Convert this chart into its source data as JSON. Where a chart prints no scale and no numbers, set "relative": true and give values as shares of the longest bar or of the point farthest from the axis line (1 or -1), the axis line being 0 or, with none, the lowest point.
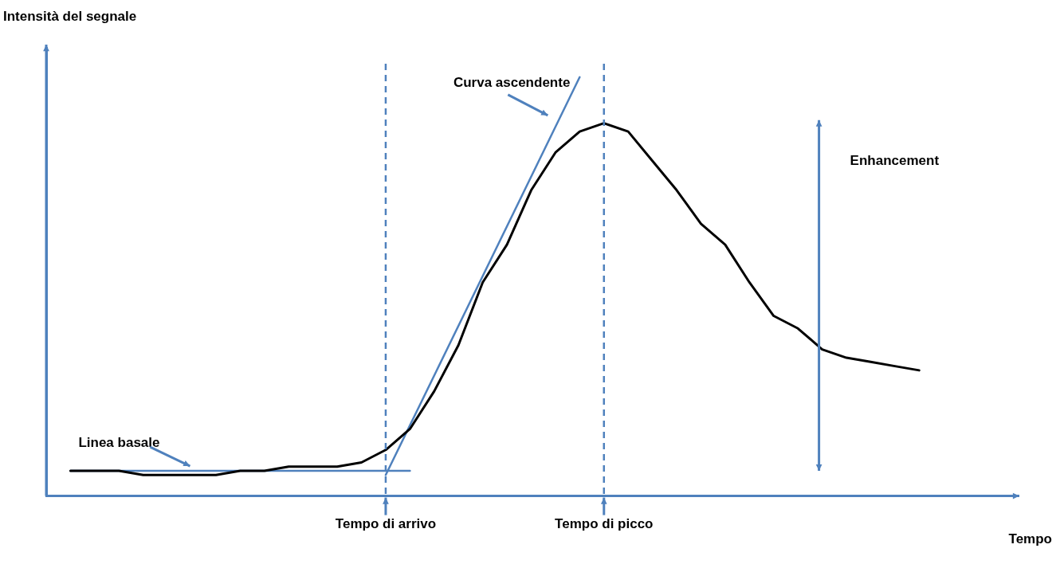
{
  "chart_data": {
    "type": "line",
    "relative": true,
    "xlabel": "Tempo",
    "ylabel": "Intensità del segnale",
    "categories": [
      null,
      null,
      null,
      null,
      null,
      null,
      null,
      null,
      null,
      null,
      null,
      null,
      null,
      null,
      "Tempo di arrivo",
      null,
      null,
      null,
      null,
      null,
      null,
      null,
      null,
      "Tempo di picco",
      null,
      null,
      null,
      null,
      null,
      null,
      null,
      null,
      null,
      null,
      null,
      null,
      null,
      null,
      null,
      null,
      null
    ],
    "series": [
      {
        "color": "#000000",
        "values": [
          null,
          0.06,
          0.06,
          0.06,
          0.05,
          0.05,
          0.05,
          0.05,
          0.06,
          0.06,
          0.07,
          0.07,
          0.07,
          0.08,
          0.11,
          0.16,
          0.25,
          0.36,
          0.51,
          0.6,
          0.73,
          0.82,
          0.87,
          0.89,
          0.87,
          0.8,
          0.73,
          0.65,
          0.6,
          0.51,
          0.43,
          0.4,
          0.35,
          0.33,
          0.32,
          0.31,
          0.3,
          null,
          null,
          null,
          null
        ]
      },
      {
        "name": "Linea basale",
        "color": "#4f81bd",
        "values": [
          null,
          0.06,
          null,
          null,
          null,
          null,
          null,
          null,
          null,
          null,
          null,
          null,
          null,
          null,
          null,
          0.06,
          null,
          null,
          null,
          null,
          null,
          null,
          null,
          null,
          null,
          null,
          null,
          null,
          null,
          null,
          null,
          null,
          null,
          null,
          null,
          null,
          null,
          null,
          null,
          null,
          null
        ]
      },
      {
        "name": "Curva ascendente",
        "color": "#4f81bd",
        "values": [
          null,
          null,
          null,
          null,
          null,
          null,
          null,
          null,
          null,
          null,
          null,
          null,
          null,
          null,
          0.05,
          null,
          null,
          null,
          null,
          null,
          null,
          null,
          1,
          null,
          null,
          null,
          null,
          null,
          null,
          null,
          null,
          null,
          null,
          null,
          null,
          null,
          null,
          null,
          null,
          null,
          null
        ]
      }
    ],
    "ref_lines": [
      {
        "axis": "x",
        "value": "Tempo di arrivo",
        "color": "#4f81bd",
        "line_style": "dashed"
      },
      {
        "axis": "x",
        "value": "Tempo di picco",
        "color": "#4f81bd",
        "line_style": "dashed"
      }
    ],
    "annotations": [
      "Enhancement"
    ],
    "grid": false,
    "legend": false,
    "tick_labels": "x",
    "marker": "none",
    "line_style": "solid"
  }
}
